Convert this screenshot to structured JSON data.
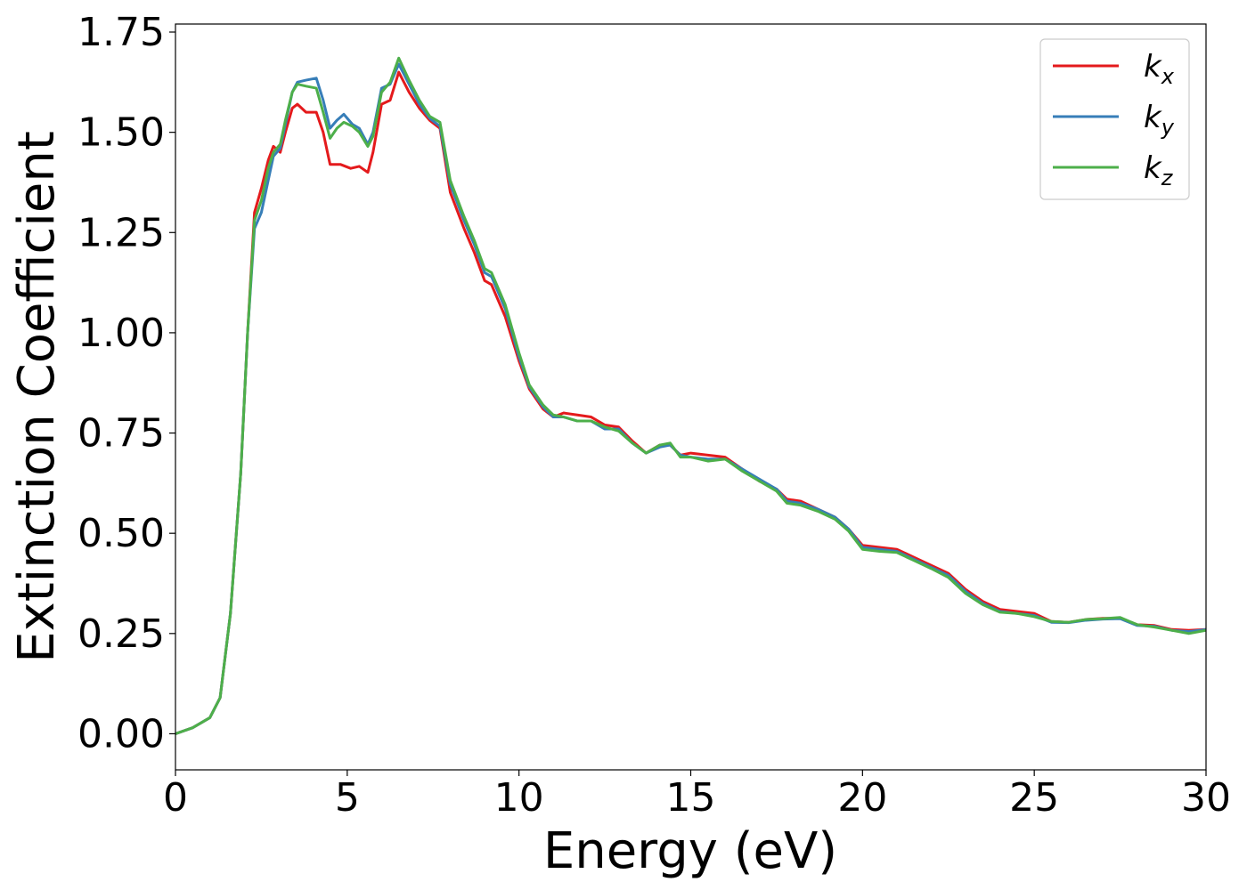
{
  "chart_data": {
    "type": "line",
    "title": "",
    "xlabel": "Energy (eV)",
    "ylabel": "Extinction Coefficient",
    "xlim": [
      0,
      30
    ],
    "ylim": [
      -0.09,
      1.77
    ],
    "xticks": [
      "0",
      "5",
      "10",
      "15",
      "20",
      "25",
      "30"
    ],
    "yticks": [
      "0.00",
      "0.25",
      "0.50",
      "0.75",
      "1.00",
      "1.25",
      "1.50",
      "1.75"
    ],
    "grid": false,
    "legend_position": "top-right",
    "series": [
      {
        "name": "kx",
        "name_base": "k",
        "name_sub": "x",
        "color": "#e41a1c",
        "points": [
          [
            0,
            0.0
          ],
          [
            0.5,
            0.015
          ],
          [
            1.0,
            0.04
          ],
          [
            1.3,
            0.09
          ],
          [
            1.6,
            0.3
          ],
          [
            1.9,
            0.65
          ],
          [
            2.1,
            1.0
          ],
          [
            2.3,
            1.3
          ],
          [
            2.5,
            1.36
          ],
          [
            2.7,
            1.43
          ],
          [
            2.85,
            1.465
          ],
          [
            3.05,
            1.45
          ],
          [
            3.2,
            1.5
          ],
          [
            3.4,
            1.56
          ],
          [
            3.55,
            1.57
          ],
          [
            3.8,
            1.55
          ],
          [
            4.1,
            1.55
          ],
          [
            4.3,
            1.5
          ],
          [
            4.5,
            1.42
          ],
          [
            4.8,
            1.42
          ],
          [
            5.1,
            1.41
          ],
          [
            5.35,
            1.415
          ],
          [
            5.6,
            1.4
          ],
          [
            5.75,
            1.45
          ],
          [
            6.0,
            1.57
          ],
          [
            6.25,
            1.58
          ],
          [
            6.5,
            1.65
          ],
          [
            6.8,
            1.6
          ],
          [
            7.1,
            1.56
          ],
          [
            7.4,
            1.53
          ],
          [
            7.7,
            1.51
          ],
          [
            8.0,
            1.35
          ],
          [
            8.4,
            1.26
          ],
          [
            8.7,
            1.2
          ],
          [
            9.0,
            1.13
          ],
          [
            9.2,
            1.12
          ],
          [
            9.6,
            1.04
          ],
          [
            10.0,
            0.93
          ],
          [
            10.3,
            0.86
          ],
          [
            10.7,
            0.81
          ],
          [
            11.0,
            0.79
          ],
          [
            11.3,
            0.8
          ],
          [
            11.7,
            0.795
          ],
          [
            12.1,
            0.79
          ],
          [
            12.5,
            0.77
          ],
          [
            12.9,
            0.765
          ],
          [
            13.3,
            0.73
          ],
          [
            13.7,
            0.7
          ],
          [
            14.1,
            0.72
          ],
          [
            14.4,
            0.72
          ],
          [
            14.7,
            0.695
          ],
          [
            15.0,
            0.7
          ],
          [
            15.5,
            0.695
          ],
          [
            16.0,
            0.69
          ],
          [
            16.5,
            0.66
          ],
          [
            17.0,
            0.63
          ],
          [
            17.5,
            0.61
          ],
          [
            17.8,
            0.585
          ],
          [
            18.2,
            0.58
          ],
          [
            18.7,
            0.56
          ],
          [
            19.2,
            0.54
          ],
          [
            19.6,
            0.51
          ],
          [
            20.0,
            0.47
          ],
          [
            20.5,
            0.465
          ],
          [
            21.0,
            0.46
          ],
          [
            21.5,
            0.44
          ],
          [
            22.0,
            0.42
          ],
          [
            22.5,
            0.4
          ],
          [
            23.0,
            0.36
          ],
          [
            23.5,
            0.33
          ],
          [
            24.0,
            0.31
          ],
          [
            24.5,
            0.305
          ],
          [
            25.0,
            0.3
          ],
          [
            25.5,
            0.28
          ],
          [
            26.0,
            0.278
          ],
          [
            26.5,
            0.285
          ],
          [
            27.0,
            0.288
          ],
          [
            27.5,
            0.288
          ],
          [
            28.0,
            0.272
          ],
          [
            28.5,
            0.27
          ],
          [
            29.0,
            0.26
          ],
          [
            29.5,
            0.258
          ],
          [
            30.0,
            0.26
          ]
        ]
      },
      {
        "name": "ky",
        "name_base": "k",
        "name_sub": "y",
        "color": "#377eb8",
        "points": [
          [
            0,
            0.0
          ],
          [
            0.5,
            0.015
          ],
          [
            1.0,
            0.04
          ],
          [
            1.3,
            0.09
          ],
          [
            1.6,
            0.3
          ],
          [
            1.9,
            0.65
          ],
          [
            2.1,
            1.0
          ],
          [
            2.3,
            1.26
          ],
          [
            2.5,
            1.3
          ],
          [
            2.7,
            1.38
          ],
          [
            2.85,
            1.44
          ],
          [
            3.05,
            1.46
          ],
          [
            3.2,
            1.52
          ],
          [
            3.4,
            1.6
          ],
          [
            3.55,
            1.625
          ],
          [
            3.8,
            1.63
          ],
          [
            4.1,
            1.635
          ],
          [
            4.3,
            1.58
          ],
          [
            4.5,
            1.51
          ],
          [
            4.7,
            1.53
          ],
          [
            4.9,
            1.545
          ],
          [
            5.15,
            1.52
          ],
          [
            5.35,
            1.51
          ],
          [
            5.6,
            1.47
          ],
          [
            5.75,
            1.5
          ],
          [
            6.0,
            1.61
          ],
          [
            6.25,
            1.62
          ],
          [
            6.5,
            1.67
          ],
          [
            6.8,
            1.62
          ],
          [
            7.1,
            1.57
          ],
          [
            7.4,
            1.535
          ],
          [
            7.7,
            1.515
          ],
          [
            8.0,
            1.37
          ],
          [
            8.4,
            1.28
          ],
          [
            8.7,
            1.22
          ],
          [
            9.0,
            1.15
          ],
          [
            9.2,
            1.14
          ],
          [
            9.6,
            1.06
          ],
          [
            10.0,
            0.94
          ],
          [
            10.3,
            0.865
          ],
          [
            10.7,
            0.815
          ],
          [
            11.0,
            0.79
          ],
          [
            11.3,
            0.79
          ],
          [
            11.7,
            0.78
          ],
          [
            12.1,
            0.78
          ],
          [
            12.5,
            0.76
          ],
          [
            12.9,
            0.76
          ],
          [
            13.3,
            0.725
          ],
          [
            13.7,
            0.7
          ],
          [
            14.1,
            0.715
          ],
          [
            14.4,
            0.72
          ],
          [
            14.7,
            0.695
          ],
          [
            15.0,
            0.69
          ],
          [
            15.5,
            0.685
          ],
          [
            16.0,
            0.685
          ],
          [
            16.5,
            0.66
          ],
          [
            17.0,
            0.635
          ],
          [
            17.5,
            0.61
          ],
          [
            17.8,
            0.58
          ],
          [
            18.2,
            0.575
          ],
          [
            18.7,
            0.56
          ],
          [
            19.2,
            0.54
          ],
          [
            19.6,
            0.51
          ],
          [
            20.0,
            0.465
          ],
          [
            20.5,
            0.46
          ],
          [
            21.0,
            0.455
          ],
          [
            21.5,
            0.435
          ],
          [
            22.0,
            0.415
          ],
          [
            22.5,
            0.395
          ],
          [
            23.0,
            0.355
          ],
          [
            23.5,
            0.325
          ],
          [
            24.0,
            0.305
          ],
          [
            24.5,
            0.3
          ],
          [
            25.0,
            0.295
          ],
          [
            25.5,
            0.278
          ],
          [
            26.0,
            0.277
          ],
          [
            26.5,
            0.283
          ],
          [
            27.0,
            0.286
          ],
          [
            27.5,
            0.287
          ],
          [
            28.0,
            0.27
          ],
          [
            28.5,
            0.268
          ],
          [
            29.0,
            0.258
          ],
          [
            29.5,
            0.255
          ],
          [
            30.0,
            0.26
          ]
        ]
      },
      {
        "name": "kz",
        "name_base": "k",
        "name_sub": "z",
        "color": "#4daf4a",
        "points": [
          [
            0,
            0.0
          ],
          [
            0.5,
            0.015
          ],
          [
            1.0,
            0.04
          ],
          [
            1.3,
            0.09
          ],
          [
            1.6,
            0.3
          ],
          [
            1.9,
            0.65
          ],
          [
            2.1,
            1.0
          ],
          [
            2.3,
            1.28
          ],
          [
            2.5,
            1.33
          ],
          [
            2.7,
            1.41
          ],
          [
            2.85,
            1.45
          ],
          [
            3.05,
            1.47
          ],
          [
            3.2,
            1.53
          ],
          [
            3.4,
            1.6
          ],
          [
            3.55,
            1.62
          ],
          [
            3.8,
            1.615
          ],
          [
            4.1,
            1.61
          ],
          [
            4.3,
            1.55
          ],
          [
            4.5,
            1.485
          ],
          [
            4.7,
            1.51
          ],
          [
            4.9,
            1.525
          ],
          [
            5.15,
            1.515
          ],
          [
            5.35,
            1.5
          ],
          [
            5.6,
            1.465
          ],
          [
            5.75,
            1.49
          ],
          [
            6.0,
            1.6
          ],
          [
            6.25,
            1.625
          ],
          [
            6.5,
            1.685
          ],
          [
            6.8,
            1.63
          ],
          [
            7.1,
            1.58
          ],
          [
            7.4,
            1.54
          ],
          [
            7.7,
            1.525
          ],
          [
            8.0,
            1.38
          ],
          [
            8.4,
            1.29
          ],
          [
            8.7,
            1.23
          ],
          [
            9.0,
            1.16
          ],
          [
            9.2,
            1.15
          ],
          [
            9.6,
            1.07
          ],
          [
            10.0,
            0.95
          ],
          [
            10.3,
            0.87
          ],
          [
            10.7,
            0.82
          ],
          [
            11.0,
            0.795
          ],
          [
            11.3,
            0.79
          ],
          [
            11.7,
            0.78
          ],
          [
            12.1,
            0.78
          ],
          [
            12.5,
            0.765
          ],
          [
            12.9,
            0.755
          ],
          [
            13.3,
            0.725
          ],
          [
            13.7,
            0.7
          ],
          [
            14.1,
            0.72
          ],
          [
            14.4,
            0.725
          ],
          [
            14.7,
            0.69
          ],
          [
            15.0,
            0.69
          ],
          [
            15.5,
            0.68
          ],
          [
            16.0,
            0.685
          ],
          [
            16.5,
            0.655
          ],
          [
            17.0,
            0.63
          ],
          [
            17.5,
            0.605
          ],
          [
            17.8,
            0.575
          ],
          [
            18.2,
            0.57
          ],
          [
            18.7,
            0.555
          ],
          [
            19.2,
            0.535
          ],
          [
            19.6,
            0.505
          ],
          [
            20.0,
            0.46
          ],
          [
            20.5,
            0.455
          ],
          [
            21.0,
            0.452
          ],
          [
            21.5,
            0.432
          ],
          [
            22.0,
            0.412
          ],
          [
            22.5,
            0.39
          ],
          [
            23.0,
            0.35
          ],
          [
            23.5,
            0.322
          ],
          [
            24.0,
            0.303
          ],
          [
            24.5,
            0.3
          ],
          [
            25.0,
            0.292
          ],
          [
            25.5,
            0.28
          ],
          [
            26.0,
            0.278
          ],
          [
            26.5,
            0.285
          ],
          [
            27.0,
            0.287
          ],
          [
            27.5,
            0.29
          ],
          [
            28.0,
            0.272
          ],
          [
            28.5,
            0.266
          ],
          [
            29.0,
            0.258
          ],
          [
            29.5,
            0.25
          ],
          [
            30.0,
            0.258
          ]
        ]
      }
    ]
  }
}
